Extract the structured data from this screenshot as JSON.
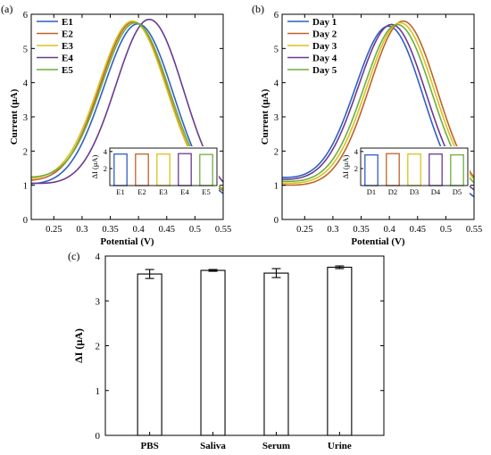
{
  "panels": [
    {
      "label": "(a)",
      "chart_data": {
        "type": "line",
        "xlabel": "Potential (V)",
        "ylabel": "Current (μA)",
        "xlim": [
          0.21,
          0.55
        ],
        "ylim": [
          0,
          6
        ],
        "xticks": [
          "0.25",
          "0.3",
          "0.35",
          "0.4",
          "0.45",
          "0.5",
          "0.55"
        ],
        "yticks": [
          "0",
          "1",
          "2",
          "3",
          "4",
          "5",
          "6"
        ],
        "legend_position": "top-left",
        "series": [
          {
            "name": "E1",
            "color": "#2f5fc4",
            "peak_x": 0.4,
            "peak_y": 5.72,
            "base": 1.0,
            "width": 0.062,
            "slope": -1.5
          },
          {
            "name": "E2",
            "color": "#c0622a",
            "peak_x": 0.392,
            "peak_y": 5.78,
            "base": 1.1,
            "width": 0.06,
            "slope": -1.2
          },
          {
            "name": "E3",
            "color": "#d9c21d",
            "peak_x": 0.39,
            "peak_y": 5.8,
            "base": 1.15,
            "width": 0.06,
            "slope": -1.2
          },
          {
            "name": "E4",
            "color": "#6a3a8f",
            "peak_x": 0.42,
            "peak_y": 5.85,
            "base": 1.05,
            "width": 0.06,
            "slope": -1.3
          },
          {
            "name": "E5",
            "color": "#6fae3e",
            "peak_x": 0.395,
            "peak_y": 5.75,
            "base": 1.2,
            "width": 0.06,
            "slope": -1.4
          }
        ],
        "inset": {
          "type": "bar",
          "ylabel": "ΔI (μA)",
          "yticks": [
            "2",
            "4"
          ],
          "ylim": [
            0,
            4.4
          ],
          "categories": [
            "E1",
            "E2",
            "E3",
            "E4",
            "E5"
          ],
          "values": [
            3.7,
            3.7,
            3.7,
            3.75,
            3.65
          ],
          "colors": [
            "#2f5fc4",
            "#c0622a",
            "#d9c21d",
            "#6a3a8f",
            "#6fae3e"
          ]
        }
      }
    },
    {
      "label": "(b)",
      "chart_data": {
        "type": "line",
        "xlabel": "Potential (V)",
        "ylabel": "Current (μA)",
        "xlim": [
          0.21,
          0.55
        ],
        "ylim": [
          0,
          6
        ],
        "xticks": [
          "0.25",
          "0.3",
          "0.35",
          "0.4",
          "0.45",
          "0.5",
          "0.55"
        ],
        "yticks": [
          "0",
          "1",
          "2",
          "3",
          "4",
          "5",
          "6"
        ],
        "legend_position": "top-left",
        "series": [
          {
            "name": "Day 1",
            "color": "#2f5fc4",
            "peak_x": 0.4,
            "peak_y": 5.65,
            "base": 1.2,
            "width": 0.06,
            "slope": -2.2
          },
          {
            "name": "Day 2",
            "color": "#c0622a",
            "peak_x": 0.425,
            "peak_y": 5.8,
            "base": 1.0,
            "width": 0.06,
            "slope": -1.0
          },
          {
            "name": "Day 3",
            "color": "#d9c21d",
            "peak_x": 0.42,
            "peak_y": 5.75,
            "base": 1.05,
            "width": 0.06,
            "slope": -1.0
          },
          {
            "name": "Day 4",
            "color": "#6a3a8f",
            "peak_x": 0.405,
            "peak_y": 5.7,
            "base": 1.15,
            "width": 0.06,
            "slope": -1.6
          },
          {
            "name": "Day 5",
            "color": "#6fae3e",
            "peak_x": 0.415,
            "peak_y": 5.7,
            "base": 1.1,
            "width": 0.06,
            "slope": -1.2
          }
        ],
        "inset": {
          "type": "bar",
          "ylabel": "ΔI (μA)",
          "yticks": [
            "2",
            "4"
          ],
          "ylim": [
            0,
            4.4
          ],
          "categories": [
            "D1",
            "D2",
            "D3",
            "D4",
            "D5"
          ],
          "values": [
            3.6,
            3.75,
            3.7,
            3.7,
            3.6
          ],
          "colors": [
            "#2f5fc4",
            "#c0622a",
            "#d9c21d",
            "#6a3a8f",
            "#6fae3e"
          ]
        }
      }
    },
    {
      "label": "(c)",
      "chart_data": {
        "type": "bar",
        "xlabel": "",
        "ylabel": "ΔI (μA)",
        "ylim": [
          0,
          4
        ],
        "yticks": [
          "0",
          "1",
          "2",
          "3",
          "4"
        ],
        "categories": [
          "PBS",
          "Saliva",
          "Serum",
          "Urine"
        ],
        "values": [
          3.6,
          3.68,
          3.62,
          3.75
        ],
        "errors": [
          0.1,
          0.02,
          0.1,
          0.03
        ]
      }
    }
  ]
}
